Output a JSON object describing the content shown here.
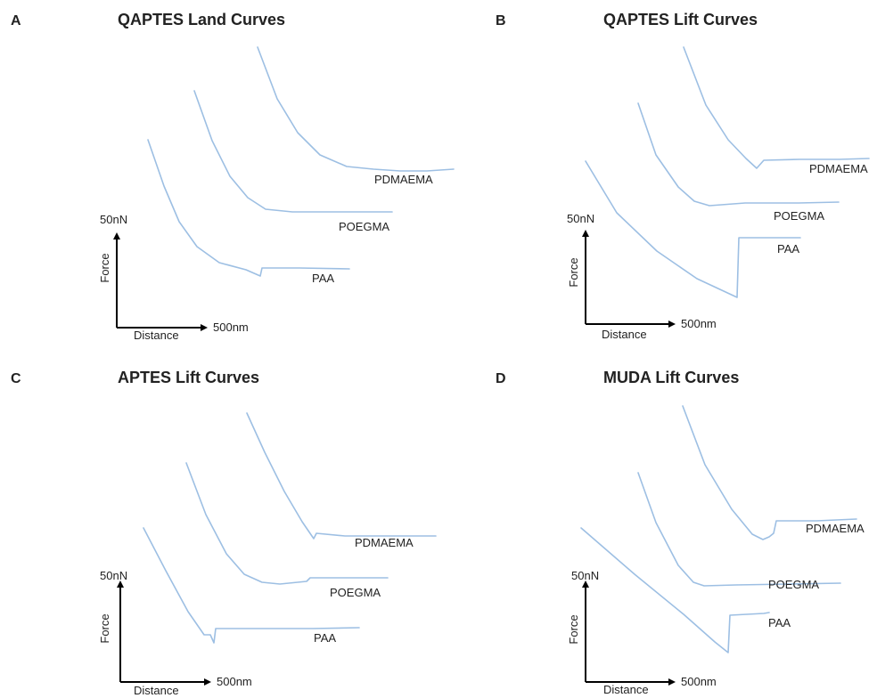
{
  "colors": {
    "curve": "#9dbfe3",
    "axis": "#000000",
    "text": "#222222"
  },
  "chart_data": [
    {
      "type": "line",
      "letter": "A",
      "title": "QAPTES Land Curves",
      "xlabel": "Distance",
      "ylabel": "Force",
      "x_scale_label": "500nm",
      "y_scale_label": "50nN",
      "series": [
        {
          "name": "PDMAEMA",
          "points": [
            [
              0,
              0
            ],
            [
              22,
              58
            ],
            [
              45,
              96
            ],
            [
              70,
              121
            ],
            [
              100,
              134
            ],
            [
              130,
              137
            ],
            [
              160,
              139
            ],
            [
              190,
              139
            ],
            [
              220,
              137
            ]
          ]
        },
        {
          "name": "POEGMA",
          "points": [
            [
              0,
              0
            ],
            [
              20,
              56
            ],
            [
              40,
              96
            ],
            [
              60,
              120
            ],
            [
              80,
              133
            ],
            [
              110,
              136
            ],
            [
              150,
              136
            ],
            [
              195,
              136
            ],
            [
              222,
              136
            ]
          ]
        },
        {
          "name": "PAA",
          "points": [
            [
              0,
              0
            ],
            [
              18,
              52
            ],
            [
              35,
              92
            ],
            [
              55,
              120
            ],
            [
              80,
              138
            ],
            [
              110,
              146
            ],
            [
              126,
              153
            ],
            [
              128,
              144
            ],
            [
              170,
              144
            ],
            [
              226,
              145
            ]
          ]
        }
      ]
    },
    {
      "type": "line",
      "letter": "B",
      "title": "QAPTES Lift Curves",
      "xlabel": "Distance",
      "ylabel": "Force",
      "x_scale_label": "500nm",
      "y_scale_label": "50nN",
      "series": [
        {
          "name": "PDMAEMA",
          "points": [
            [
              0,
              0
            ],
            [
              25,
              65
            ],
            [
              50,
              104
            ],
            [
              70,
              125
            ],
            [
              82,
              136
            ],
            [
              90,
              127
            ],
            [
              130,
              126
            ],
            [
              175,
              126
            ],
            [
              208,
              125
            ]
          ]
        },
        {
          "name": "POEGMA",
          "points": [
            [
              0,
              0
            ],
            [
              20,
              58
            ],
            [
              45,
              94
            ],
            [
              63,
              110
            ],
            [
              80,
              115
            ],
            [
              120,
              112
            ],
            [
              180,
              112
            ],
            [
              225,
              111
            ]
          ]
        },
        {
          "name": "PAA",
          "points": [
            [
              0,
              0
            ],
            [
              35,
              58
            ],
            [
              80,
              101
            ],
            [
              125,
              132
            ],
            [
              170,
              153
            ],
            [
              172,
              86
            ],
            [
              200,
              86
            ],
            [
              241,
              86
            ]
          ]
        }
      ]
    },
    {
      "type": "line",
      "letter": "C",
      "title": "APTES Lift Curves",
      "xlabel": "Distance",
      "ylabel": "Force",
      "x_scale_label": "500nm",
      "y_scale_label": "50nN",
      "series": [
        {
          "name": "PDMAEMA",
          "points": [
            [
              0,
              0
            ],
            [
              20,
              44
            ],
            [
              42,
              88
            ],
            [
              62,
              122
            ],
            [
              75,
              141
            ],
            [
              78,
              135
            ],
            [
              110,
              138
            ],
            [
              160,
              138
            ],
            [
              212,
              138
            ]
          ]
        },
        {
          "name": "POEGMA",
          "points": [
            [
              0,
              0
            ],
            [
              22,
              58
            ],
            [
              45,
              102
            ],
            [
              65,
              125
            ],
            [
              85,
              134
            ],
            [
              105,
              136
            ],
            [
              135,
              133
            ],
            [
              139,
              129
            ],
            [
              190,
              129
            ],
            [
              226,
              129
            ]
          ]
        },
        {
          "name": "PAA",
          "points": [
            [
              0,
              0
            ],
            [
              25,
              48
            ],
            [
              50,
              94
            ],
            [
              68,
              120
            ],
            [
              75,
              120
            ],
            [
              79,
              129
            ],
            [
              81,
              113
            ],
            [
              130,
              113
            ],
            [
              190,
              113
            ],
            [
              242,
              112
            ]
          ]
        }
      ]
    },
    {
      "type": "line",
      "letter": "D",
      "title": "MUDA Lift Curves",
      "xlabel": "Distance",
      "ylabel": "Force",
      "x_scale_label": "500nm",
      "y_scale_label": "50nN",
      "series": [
        {
          "name": "PDMAEMA",
          "points": [
            [
              0,
              0
            ],
            [
              25,
              66
            ],
            [
              55,
              116
            ],
            [
              78,
              144
            ],
            [
              90,
              150
            ],
            [
              97,
              147
            ],
            [
              102,
              143
            ],
            [
              105,
              129
            ],
            [
              150,
              129
            ],
            [
              195,
              127
            ]
          ]
        },
        {
          "name": "POEGMA",
          "points": [
            [
              0,
              0
            ],
            [
              20,
              56
            ],
            [
              45,
              104
            ],
            [
              62,
              123
            ],
            [
              74,
              127
            ],
            [
              110,
              126
            ],
            [
              170,
              125
            ],
            [
              227,
              124
            ]
          ]
        },
        {
          "name": "PAA",
          "points": [
            [
              0,
              0
            ],
            [
              60,
              52
            ],
            [
              115,
              97
            ],
            [
              150,
              128
            ],
            [
              165,
              140
            ],
            [
              167,
              98
            ],
            [
              205,
              96
            ],
            [
              211,
              95
            ]
          ]
        }
      ]
    }
  ]
}
